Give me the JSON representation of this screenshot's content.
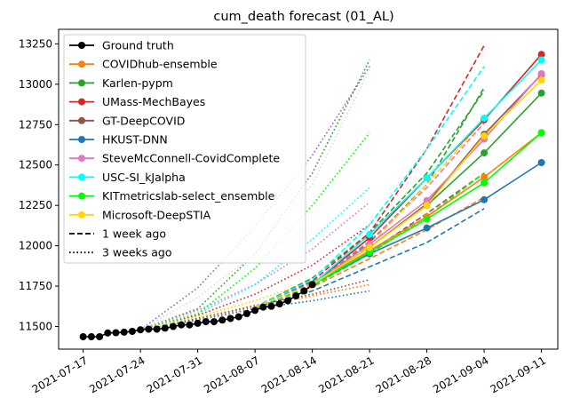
{
  "chart_data": {
    "type": "line",
    "title": "cum_death forecast (01_AL)",
    "xlabel": "",
    "ylabel": "",
    "x_range": [
      "2021-07-14",
      "2021-09-13"
    ],
    "ylim": [
      11360,
      13340
    ],
    "x_ticks": [
      "2021-07-17",
      "2021-07-24",
      "2021-07-31",
      "2021-08-07",
      "2021-08-14",
      "2021-08-21",
      "2021-08-28",
      "2021-09-04",
      "2021-09-11"
    ],
    "y_ticks": [
      11500,
      11750,
      12000,
      12250,
      12500,
      12750,
      13000,
      13250
    ],
    "grid": false,
    "legend_position": "top-left",
    "legend": [
      {
        "label": "Ground truth",
        "color": "#000000",
        "style": "solid",
        "marker": true
      },
      {
        "label": "COVIDhub-ensemble",
        "color": "#ff7f0e",
        "style": "solid",
        "marker": true
      },
      {
        "label": "Karlen-pypm",
        "color": "#2ca02c",
        "style": "solid",
        "marker": true
      },
      {
        "label": "UMass-MechBayes",
        "color": "#d62728",
        "style": "solid",
        "marker": true
      },
      {
        "label": "GT-DeepCOVID",
        "color": "#8c564b",
        "style": "solid",
        "marker": true
      },
      {
        "label": "HKUST-DNN",
        "color": "#1f77b4",
        "style": "solid",
        "marker": true
      },
      {
        "label": "SteveMcConnell-CovidComplete",
        "color": "#e377c2",
        "style": "solid",
        "marker": true
      },
      {
        "label": "USC-SI_kJalpha",
        "color": "#00ffff",
        "style": "solid",
        "marker": true
      },
      {
        "label": "KITmetricslab-select_ensemble",
        "color": "#00ff00",
        "style": "solid",
        "marker": true
      },
      {
        "label": "Microsoft-DeepSTIA",
        "color": "#ffd700",
        "style": "solid",
        "marker": true
      },
      {
        "label": "1 week ago",
        "color": "#000000",
        "style": "dashed",
        "marker": false
      },
      {
        "label": "3 weeks ago",
        "color": "#000000",
        "style": "dotted",
        "marker": false
      }
    ],
    "ground_truth": {
      "x": [
        "2021-07-17",
        "2021-07-18",
        "2021-07-19",
        "2021-07-20",
        "2021-07-21",
        "2021-07-22",
        "2021-07-23",
        "2021-07-24",
        "2021-07-25",
        "2021-07-26",
        "2021-07-27",
        "2021-07-28",
        "2021-07-29",
        "2021-07-30",
        "2021-07-31",
        "2021-08-01",
        "2021-08-02",
        "2021-08-03",
        "2021-08-04",
        "2021-08-05",
        "2021-08-06",
        "2021-08-07",
        "2021-08-08",
        "2021-08-09",
        "2021-08-10",
        "2021-08-11",
        "2021-08-12",
        "2021-08-13",
        "2021-08-14"
      ],
      "y": [
        11437,
        11437,
        11437,
        11460,
        11462,
        11465,
        11470,
        11480,
        11484,
        11484,
        11490,
        11500,
        11510,
        11510,
        11520,
        11530,
        11530,
        11540,
        11550,
        11560,
        11580,
        11600,
        11620,
        11625,
        11640,
        11660,
        11690,
        11720,
        11760
      ]
    },
    "series": [
      {
        "name": "COVIDhub-ensemble",
        "color": "#ff7f0e",
        "current": {
          "x": [
            "2021-08-14",
            "2021-08-21",
            "2021-08-28",
            "2021-09-04",
            "2021-09-11"
          ],
          "y": [
            11760,
            11970,
            12180,
            12425,
            12700
          ]
        },
        "week_ago": {
          "x": [
            "2021-08-07",
            "2021-08-14",
            "2021-08-21",
            "2021-08-28",
            "2021-09-04"
          ],
          "y": [
            11620,
            11745,
            11920,
            12100,
            12300
          ]
        },
        "three_weeks_ago": {
          "x": [
            "2021-07-24",
            "2021-07-31",
            "2021-08-07",
            "2021-08-14",
            "2021-08-21"
          ],
          "y": [
            11480,
            11550,
            11620,
            11690,
            11760
          ]
        }
      },
      {
        "name": "Karlen-pypm",
        "color": "#2ca02c",
        "current": {
          "x": [
            "2021-08-14",
            "2021-08-21",
            "2021-08-28",
            "2021-09-04",
            "2021-09-11"
          ],
          "y": [
            11760,
            11990,
            12250,
            12575,
            12945
          ]
        },
        "week_ago": {
          "x": [
            "2021-08-07",
            "2021-08-14",
            "2021-08-21",
            "2021-08-28",
            "2021-09-04"
          ],
          "y": [
            11620,
            11760,
            12020,
            12380,
            12980
          ]
        },
        "three_weeks_ago": {
          "x": [
            "2021-07-24",
            "2021-07-31",
            "2021-08-07",
            "2021-08-14",
            "2021-08-21"
          ],
          "y": [
            11480,
            11610,
            11950,
            12450,
            13150
          ]
        }
      },
      {
        "name": "UMass-MechBayes",
        "color": "#d62728",
        "current": {
          "x": [
            "2021-08-14",
            "2021-08-21",
            "2021-08-28",
            "2021-09-04",
            "2021-09-11"
          ],
          "y": [
            11760,
            12050,
            12420,
            12780,
            13185
          ]
        },
        "week_ago": {
          "x": [
            "2021-08-07",
            "2021-08-14",
            "2021-08-21",
            "2021-08-28",
            "2021-09-04"
          ],
          "y": [
            11620,
            11780,
            12080,
            12600,
            13240
          ]
        },
        "three_weeks_ago": {
          "x": [
            "2021-07-24",
            "2021-07-31",
            "2021-08-07",
            "2021-08-14",
            "2021-08-21"
          ],
          "y": [
            11480,
            11570,
            11700,
            11880,
            12130
          ]
        }
      },
      {
        "name": "GT-DeepCOVID",
        "color": "#8c564b",
        "current": {
          "x": [
            "2021-08-14",
            "2021-08-21",
            "2021-08-28",
            "2021-09-04",
            "2021-09-11"
          ],
          "y": [
            11760,
            11990,
            12260,
            12690,
            13060
          ]
        },
        "week_ago": {
          "x": [
            "2021-08-07",
            "2021-08-14",
            "2021-08-21",
            "2021-08-28",
            "2021-09-04"
          ],
          "y": [
            11620,
            11750,
            11960,
            12200,
            12450
          ]
        },
        "three_weeks_ago": {
          "x": [
            "2021-07-24",
            "2021-07-31",
            "2021-08-07",
            "2021-08-14",
            "2021-08-21"
          ],
          "y": [
            11480,
            11550,
            11630,
            11700,
            11790
          ]
        }
      },
      {
        "name": "HKUST-DNN",
        "color": "#1f77b4",
        "current": {
          "x": [
            "2021-08-14",
            "2021-08-21",
            "2021-08-28",
            "2021-09-04",
            "2021-09-11"
          ],
          "y": [
            11760,
            11950,
            12110,
            12285,
            12515
          ]
        },
        "week_ago": {
          "x": [
            "2021-08-07",
            "2021-08-14",
            "2021-08-21",
            "2021-08-28",
            "2021-09-04"
          ],
          "y": [
            11620,
            11720,
            11870,
            12020,
            12230
          ]
        },
        "three_weeks_ago": {
          "x": [
            "2021-07-24",
            "2021-07-31",
            "2021-08-07",
            "2021-08-14",
            "2021-08-21"
          ],
          "y": [
            11480,
            11540,
            11610,
            11660,
            11720
          ]
        }
      },
      {
        "name": "SteveMcConnell-CovidComplete",
        "color": "#e377c2",
        "current": {
          "x": [
            "2021-08-14",
            "2021-08-21",
            "2021-08-28",
            "2021-09-04",
            "2021-09-11"
          ],
          "y": [
            11760,
            12010,
            12280,
            12660,
            13065
          ]
        },
        "week_ago": {
          "x": [
            "2021-08-07",
            "2021-08-14",
            "2021-08-21",
            "2021-08-28",
            "2021-09-04"
          ],
          "y": [
            11620,
            11770,
            12030,
            12360,
            12760
          ]
        },
        "three_weeks_ago": {
          "x": [
            "2021-07-24",
            "2021-07-31",
            "2021-08-07",
            "2021-08-14",
            "2021-08-21"
          ],
          "y": [
            11480,
            11600,
            11760,
            11980,
            12270
          ]
        }
      },
      {
        "name": "USC-SI_kJalpha",
        "color": "#00ffff",
        "current": {
          "x": [
            "2021-08-14",
            "2021-08-21",
            "2021-08-28",
            "2021-09-04",
            "2021-09-11"
          ],
          "y": [
            11760,
            12070,
            12420,
            12790,
            13150
          ]
        },
        "week_ago": {
          "x": [
            "2021-08-07",
            "2021-08-14",
            "2021-08-21",
            "2021-08-28",
            "2021-09-04"
          ],
          "y": [
            11620,
            11790,
            12130,
            12600,
            13110
          ]
        },
        "three_weeks_ago": {
          "x": [
            "2021-07-24",
            "2021-07-31",
            "2021-08-07",
            "2021-08-14",
            "2021-08-21"
          ],
          "y": [
            11480,
            11580,
            11760,
            12040,
            12360
          ]
        }
      },
      {
        "name": "KITmetricslab-select_ensemble",
        "color": "#00ff00",
        "current": {
          "x": [
            "2021-08-14",
            "2021-08-21",
            "2021-08-28",
            "2021-09-04",
            "2021-09-11"
          ],
          "y": [
            11760,
            11960,
            12165,
            12390,
            12700
          ]
        },
        "week_ago": {
          "x": [
            "2021-08-07",
            "2021-08-14",
            "2021-08-21",
            "2021-08-28",
            "2021-09-04"
          ],
          "y": [
            11620,
            11750,
            11950,
            12180,
            12450
          ]
        },
        "three_weeks_ago": {
          "x": [
            "2021-07-24",
            "2021-07-31",
            "2021-08-07",
            "2021-08-14",
            "2021-08-21"
          ],
          "y": [
            11480,
            11580,
            11860,
            12250,
            12700
          ]
        }
      },
      {
        "name": "Microsoft-DeepSTIA",
        "color": "#ffd700",
        "current": {
          "x": [
            "2021-08-14",
            "2021-08-21",
            "2021-08-28",
            "2021-09-04",
            "2021-09-11"
          ],
          "y": [
            11760,
            11990,
            12250,
            12680,
            13025
          ]
        },
        "week_ago": {
          "x": [
            "2021-08-07",
            "2021-08-14",
            "2021-08-21",
            "2021-08-28",
            "2021-09-04"
          ],
          "y": [
            11620,
            11760,
            12000,
            12380,
            12780
          ]
        },
        "three_weeks_ago": {
          "x": [
            "2021-07-24",
            "2021-07-31",
            "2021-08-07",
            "2021-08-14",
            "2021-08-21"
          ],
          "y": [
            11480,
            11560,
            11660,
            11780,
            11950
          ]
        }
      }
    ],
    "extra_lines": [
      {
        "color": "#9467bd",
        "style": "dotted",
        "x": [
          "2021-07-24",
          "2021-07-31",
          "2021-08-07",
          "2021-08-14",
          "2021-08-21"
        ],
        "y": [
          11480,
          11740,
          12120,
          12560,
          13110
        ]
      },
      {
        "color": "#dddddd",
        "style": "dotted",
        "x": [
          "2021-07-24",
          "2021-07-31",
          "2021-08-07",
          "2021-08-14",
          "2021-08-21"
        ],
        "y": [
          11480,
          11680,
          11950,
          12380,
          13090
        ]
      },
      {
        "color": "#2ca02c",
        "style": "dashed",
        "x": [
          "2021-08-07",
          "2021-08-14",
          "2021-08-21",
          "2021-08-28",
          "2021-09-04"
        ],
        "y": [
          11620,
          11800,
          12080,
          12450,
          12960
        ]
      }
    ]
  }
}
